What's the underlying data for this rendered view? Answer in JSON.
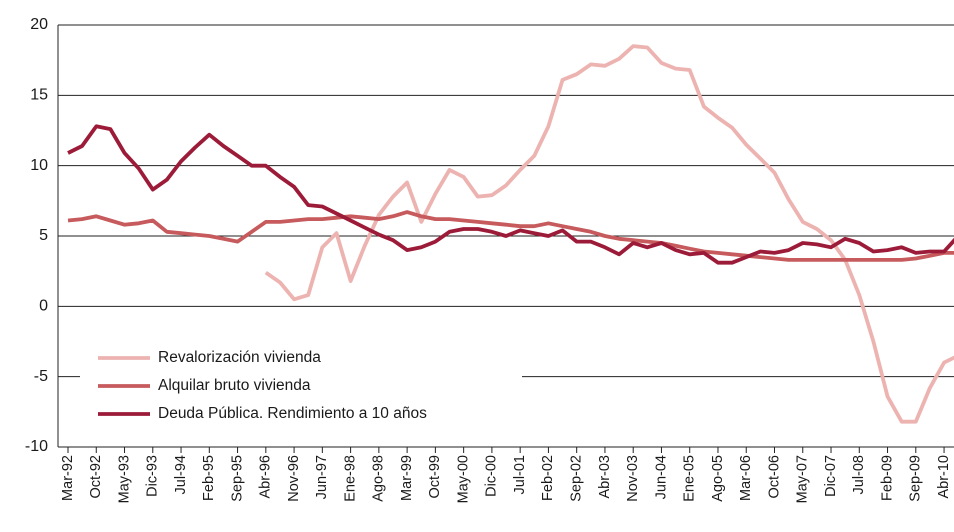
{
  "chart_data": {
    "type": "line",
    "categories": [
      "Mar-92",
      null,
      "Oct-92",
      null,
      "May-93",
      null,
      "Dic-93",
      null,
      "Jul-94",
      null,
      "Feb-95",
      null,
      "Sep-95",
      null,
      "Abr-96",
      null,
      "Nov-96",
      null,
      "Jun-97",
      null,
      "Ene-98",
      null,
      "Ago-98",
      null,
      "Mar-99",
      null,
      "Oct-99",
      null,
      "May-00",
      null,
      "Dic-00",
      null,
      "Jul-01",
      null,
      "Feb-02",
      null,
      "Sep-02",
      null,
      "Abr-03",
      null,
      "Nov-03",
      null,
      "Jun-04",
      null,
      "Ene-05",
      null,
      "Ago-05",
      null,
      "Mar-06",
      null,
      "Oct-06",
      null,
      "May-07",
      null,
      "Dic-07",
      null,
      "Jul-08",
      null,
      "Feb-09",
      null,
      "Sep-09",
      null,
      "Abr-10",
      null
    ],
    "series": [
      {
        "name": "Revalorización vivienda",
        "color": "#ecb3b0",
        "values": [
          null,
          null,
          null,
          null,
          null,
          null,
          null,
          null,
          null,
          null,
          null,
          null,
          null,
          null,
          2.4,
          1.7,
          0.5,
          0.8,
          4.2,
          5.2,
          1.8,
          4.3,
          6.5,
          7.8,
          8.8,
          6.0,
          8.0,
          9.7,
          9.2,
          7.8,
          7.9,
          8.6,
          9.7,
          10.7,
          12.8,
          16.1,
          16.5,
          17.2,
          17.1,
          17.6,
          18.5,
          18.4,
          17.3,
          16.9,
          16.8,
          14.2,
          13.4,
          12.7,
          11.5,
          10.5,
          9.5,
          7.6,
          6.0,
          5.5,
          4.7,
          3.3,
          0.8,
          -2.5,
          -6.4,
          -8.2,
          -8.2,
          -5.8,
          -4.0,
          -3.5
        ]
      },
      {
        "name": "Alquilar bruto vivienda",
        "color": "#c65a5c",
        "values": [
          6.1,
          6.2,
          6.4,
          6.1,
          5.8,
          5.9,
          6.1,
          5.3,
          5.2,
          5.1,
          5.0,
          4.8,
          4.6,
          5.3,
          6.0,
          6.0,
          6.1,
          6.2,
          6.2,
          6.3,
          6.4,
          6.3,
          6.2,
          6.4,
          6.7,
          6.4,
          6.2,
          6.2,
          6.1,
          6.0,
          5.9,
          5.8,
          5.7,
          5.7,
          5.9,
          5.7,
          5.5,
          5.3,
          5.0,
          4.8,
          4.7,
          4.6,
          4.5,
          4.3,
          4.1,
          3.9,
          3.8,
          3.7,
          3.6,
          3.5,
          3.4,
          3.3,
          3.3,
          3.3,
          3.3,
          3.3,
          3.3,
          3.3,
          3.3,
          3.3,
          3.4,
          3.6,
          3.8,
          3.8
        ]
      },
      {
        "name": "Deuda Pública. Rendimiento a 10 años",
        "color": "#9c1b38",
        "values": [
          10.9,
          11.4,
          12.8,
          12.6,
          10.9,
          9.8,
          8.3,
          9.0,
          10.3,
          11.3,
          12.2,
          11.4,
          10.7,
          10.0,
          10.0,
          9.2,
          8.5,
          7.2,
          7.1,
          6.6,
          6.1,
          5.6,
          5.1,
          4.7,
          4.0,
          4.2,
          4.6,
          5.3,
          5.5,
          5.5,
          5.3,
          5.0,
          5.4,
          5.2,
          5.0,
          5.4,
          4.6,
          4.6,
          4.2,
          3.7,
          4.5,
          4.2,
          4.5,
          4.0,
          3.7,
          3.8,
          3.1,
          3.1,
          3.5,
          3.9,
          3.8,
          4.0,
          4.5,
          4.4,
          4.2,
          4.8,
          4.5,
          3.9,
          4.0,
          4.2,
          3.8,
          3.9,
          3.9,
          5.0
        ]
      }
    ],
    "ylim": [
      -10,
      20
    ],
    "yticks": [
      -10,
      -5,
      0,
      5,
      10,
      15,
      20
    ],
    "grid": true
  }
}
